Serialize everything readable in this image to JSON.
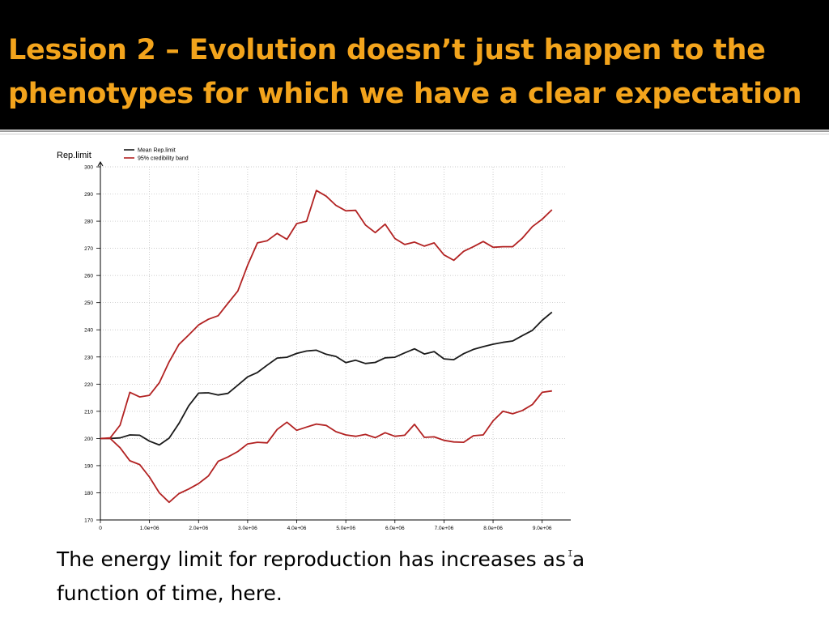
{
  "slide": {
    "title_line1": "Lession 2 – Evolution doesn’t just happen to the",
    "title_line2": "phenotypes for which we have a clear expectation",
    "caption": "The energy limit for reproduction has increases as a function of time, here.",
    "title_color": "#f3a41c",
    "header_bg": "#000000"
  },
  "chart_data": {
    "type": "line",
    "ylabel": "Rep.limit",
    "ylim": [
      170,
      300
    ],
    "xlim": [
      0,
      9500000
    ],
    "yticks": [
      170,
      180,
      190,
      200,
      210,
      220,
      230,
      240,
      250,
      260,
      270,
      280,
      290,
      300
    ],
    "xticks": [
      {
        "value": 0,
        "label": "0"
      },
      {
        "value": 1000000,
        "label": "1.0e+06"
      },
      {
        "value": 2000000,
        "label": "2.0e+06"
      },
      {
        "value": 3000000,
        "label": "3.0e+06"
      },
      {
        "value": 4000000,
        "label": "4.0e+06"
      },
      {
        "value": 5000000,
        "label": "5.0e+06"
      },
      {
        "value": 6000000,
        "label": "6.0e+06"
      },
      {
        "value": 7000000,
        "label": "7.0e+06"
      },
      {
        "value": 8000000,
        "label": "8.0e+06"
      },
      {
        "value": 9000000,
        "label": "9.0e+06"
      }
    ],
    "grid": true,
    "legend": "top-left",
    "x": [
      0,
      200000,
      400000,
      600000,
      800000,
      1000000,
      1200000,
      1400000,
      1600000,
      1800000,
      2000000,
      2200000,
      2400000,
      2600000,
      2800000,
      3000000,
      3200000,
      3400000,
      3600000,
      3800000,
      4000000,
      4200000,
      4400000,
      4600000,
      4800000,
      5000000,
      5200000,
      5400000,
      5600000,
      5800000,
      6000000,
      6200000,
      6400000,
      6600000,
      6800000,
      7000000,
      7200000,
      7400000,
      7600000,
      7800000,
      8000000,
      8200000,
      8400000,
      8600000,
      8800000,
      9000000,
      9200000
    ],
    "series": [
      {
        "name": "Mean Rep.limit",
        "color": "#1a1a1a",
        "values": [
          200,
          200,
          200.2,
          201.3,
          201.2,
          199,
          197.6,
          200.1,
          205.5,
          212,
          216.7,
          216.8,
          216,
          216.6,
          219.6,
          222.7,
          224.3,
          227,
          229.6,
          229.9,
          231.3,
          232.2,
          232.5,
          231,
          230.2,
          227.9,
          228.8,
          227.6,
          228,
          229.7,
          229.9,
          231.5,
          233,
          231.1,
          232,
          229.3,
          229,
          231.2,
          232.8,
          233.8,
          234.7,
          235.4,
          235.9,
          237.9,
          239.8,
          243.5,
          246.5
        ],
        "style": "solid"
      },
      {
        "name": "95% credibility band",
        "color": "#b22222",
        "values": [
          200,
          200.2,
          204.9,
          217,
          215.3,
          215.9,
          220.5,
          228.2,
          234.6,
          238.1,
          241.8,
          243.9,
          245.2,
          249.8,
          254.3,
          263.8,
          272,
          272.8,
          275.5,
          273.3,
          279.1,
          280,
          291.3,
          289.2,
          285.8,
          283.8,
          284,
          278.6,
          275.8,
          278.9,
          273.6,
          271.4,
          272.3,
          270.8,
          272,
          267.6,
          265.6,
          268.9,
          270.6,
          272.5,
          270.4,
          270.6,
          270.6,
          273.8,
          278,
          280.7,
          284.2
        ],
        "style": "solid"
      },
      {
        "name": "",
        "color": "#b22222",
        "values": [
          200,
          200,
          196.6,
          191.8,
          190.4,
          185.8,
          180,
          176.5,
          179.7,
          181.4,
          183.4,
          186.2,
          191.6,
          193.2,
          195.2,
          198,
          198.6,
          198.4,
          203.3,
          206,
          203,
          204.2,
          205.3,
          204.8,
          202.5,
          201.3,
          200.8,
          201.5,
          200.3,
          202.1,
          200.8,
          201.2,
          205.2,
          200.4,
          200.6,
          199.3,
          198.7,
          198.6,
          201,
          201.3,
          206.5,
          210,
          209.1,
          210.3,
          212.5,
          217,
          217.5
        ],
        "style": "solid"
      }
    ]
  }
}
